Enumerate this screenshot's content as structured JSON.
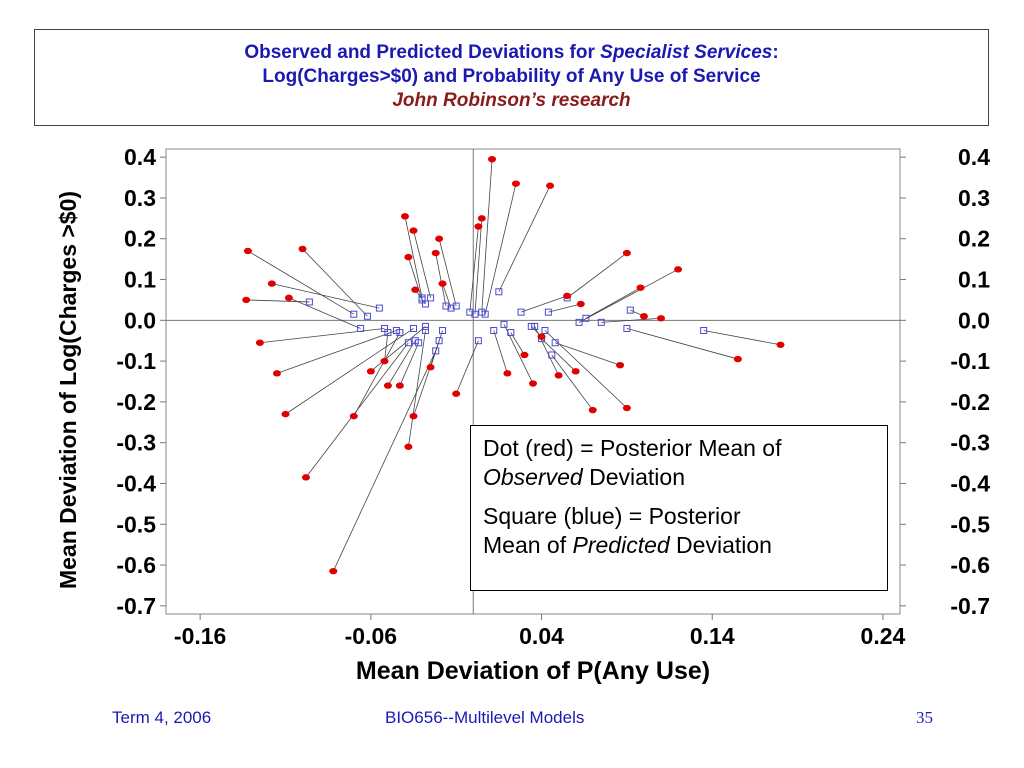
{
  "slide": {
    "title_line1_prefix": "Observed and Predicted Deviations for ",
    "title_line1_italic": "Specialist Services",
    "title_line1_suffix": ":",
    "title_line2": "Log(Charges>$0) and Probability of Any Use of Service",
    "title_line3": "John Robinson’s research",
    "footer_left": "Term 4, 2006",
    "footer_center": "BIO656--Multilevel Models",
    "page_number": "35",
    "colors": {
      "title": "#1a1ab3",
      "subtitle": "#8b1a1a",
      "footer": "#1a1ab3"
    }
  },
  "legend": {
    "line1_prefix": "Dot (red) = Posterior Mean of",
    "line1_italic": "Observed",
    "line1_suffix": " Deviation",
    "line2_prefix": "Square (blue) = Posterior",
    "line2_mid": "Mean of ",
    "line2_italic": "Predicted",
    "line2_suffix": " Deviation"
  },
  "chart_data": {
    "type": "scatter",
    "xlabel": "Mean Deviation of P(Any Use)",
    "ylabel": "Mean Deviation of Log(Charges >$0)",
    "xlim": [
      -0.18,
      0.25
    ],
    "ylim": [
      -0.72,
      0.42
    ],
    "x_ticks": [
      -0.16,
      -0.06,
      0.04,
      0.14,
      0.24
    ],
    "x_tick_labels": [
      "-0.16",
      "-0.06",
      "0.04",
      "0.14",
      "0.24"
    ],
    "y_ticks": [
      0.4,
      0.3,
      0.2,
      0.1,
      0.0,
      -0.1,
      -0.2,
      -0.3,
      -0.4,
      -0.5,
      -0.6,
      -0.7
    ],
    "y_tick_labels": [
      "0.4",
      "0.3",
      "0.2",
      "0.1",
      "0.0",
      "-0.1",
      "-0.2",
      "-0.3",
      "-0.4",
      "-0.5",
      "-0.6",
      "-0.7"
    ],
    "right_axis_labels": true,
    "reference_lines": {
      "x": 0.0,
      "y": 0.0
    },
    "marker_colors": {
      "observed": "#e00000",
      "predicted": "#4a4ad0"
    },
    "pairs": [
      {
        "obs": [
          0.011,
          0.395
        ],
        "pred": [
          0.005,
          0.02
        ]
      },
      {
        "obs": [
          0.025,
          0.335
        ],
        "pred": [
          0.007,
          0.015
        ]
      },
      {
        "obs": [
          0.045,
          0.33
        ],
        "pred": [
          0.015,
          0.07
        ]
      },
      {
        "obs": [
          0.005,
          0.25
        ],
        "pred": [
          0.001,
          0.015
        ]
      },
      {
        "obs": [
          0.003,
          0.23
        ],
        "pred": [
          -0.002,
          0.02
        ]
      },
      {
        "obs": [
          -0.04,
          0.255
        ],
        "pred": [
          -0.03,
          0.055
        ]
      },
      {
        "obs": [
          -0.035,
          0.22
        ],
        "pred": [
          -0.025,
          0.055
        ]
      },
      {
        "obs": [
          -0.02,
          0.2
        ],
        "pred": [
          -0.01,
          0.035
        ]
      },
      {
        "obs": [
          -0.038,
          0.155
        ],
        "pred": [
          -0.03,
          0.05
        ]
      },
      {
        "obs": [
          -0.022,
          0.165
        ],
        "pred": [
          -0.016,
          0.035
        ]
      },
      {
        "obs": [
          -0.034,
          0.075
        ],
        "pred": [
          -0.028,
          0.04
        ]
      },
      {
        "obs": [
          -0.018,
          0.09
        ],
        "pred": [
          -0.013,
          0.03
        ]
      },
      {
        "obs": [
          -0.132,
          0.17
        ],
        "pred": [
          -0.07,
          0.015
        ]
      },
      {
        "obs": [
          -0.1,
          0.175
        ],
        "pred": [
          -0.062,
          0.01
        ]
      },
      {
        "obs": [
          -0.118,
          0.09
        ],
        "pred": [
          -0.055,
          0.03
        ]
      },
      {
        "obs": [
          -0.108,
          0.055
        ],
        "pred": [
          -0.066,
          -0.02
        ]
      },
      {
        "obs": [
          -0.133,
          0.05
        ],
        "pred": [
          -0.096,
          0.045
        ]
      },
      {
        "obs": [
          -0.125,
          -0.055
        ],
        "pred": [
          -0.052,
          -0.02
        ]
      },
      {
        "obs": [
          -0.115,
          -0.13
        ],
        "pred": [
          -0.045,
          -0.025
        ]
      },
      {
        "obs": [
          -0.11,
          -0.23
        ],
        "pred": [
          -0.035,
          -0.02
        ]
      },
      {
        "obs": [
          -0.07,
          -0.235
        ],
        "pred": [
          -0.043,
          -0.03
        ]
      },
      {
        "obs": [
          -0.06,
          -0.125
        ],
        "pred": [
          -0.028,
          -0.015
        ]
      },
      {
        "obs": [
          -0.052,
          -0.1
        ],
        "pred": [
          -0.05,
          -0.03
        ]
      },
      {
        "obs": [
          -0.05,
          -0.16
        ],
        "pred": [
          -0.034,
          -0.05
        ]
      },
      {
        "obs": [
          -0.043,
          -0.16
        ],
        "pred": [
          -0.032,
          -0.055
        ]
      },
      {
        "obs": [
          -0.035,
          -0.235
        ],
        "pred": [
          -0.02,
          -0.05
        ]
      },
      {
        "obs": [
          -0.038,
          -0.31
        ],
        "pred": [
          -0.028,
          -0.025
        ]
      },
      {
        "obs": [
          -0.098,
          -0.385
        ],
        "pred": [
          -0.038,
          -0.055
        ]
      },
      {
        "obs": [
          -0.082,
          -0.615
        ],
        "pred": [
          -0.022,
          -0.075
        ]
      },
      {
        "obs": [
          -0.025,
          -0.115
        ],
        "pred": [
          -0.018,
          -0.025
        ]
      },
      {
        "obs": [
          -0.01,
          -0.18
        ],
        "pred": [
          0.003,
          -0.05
        ]
      },
      {
        "obs": [
          0.02,
          -0.13
        ],
        "pred": [
          0.012,
          -0.025
        ]
      },
      {
        "obs": [
          0.03,
          -0.085
        ],
        "pred": [
          0.022,
          -0.03
        ]
      },
      {
        "obs": [
          0.035,
          -0.155
        ],
        "pred": [
          0.018,
          -0.01
        ]
      },
      {
        "obs": [
          0.05,
          -0.135
        ],
        "pred": [
          0.036,
          -0.015
        ]
      },
      {
        "obs": [
          0.06,
          -0.125
        ],
        "pred": [
          0.04,
          -0.045
        ]
      },
      {
        "obs": [
          0.07,
          -0.22
        ],
        "pred": [
          0.046,
          -0.085
        ]
      },
      {
        "obs": [
          0.09,
          -0.215
        ],
        "pred": [
          0.042,
          -0.025
        ]
      },
      {
        "obs": [
          0.086,
          -0.11
        ],
        "pred": [
          0.048,
          -0.055
        ]
      },
      {
        "obs": [
          0.04,
          -0.04
        ],
        "pred": [
          0.034,
          -0.015
        ]
      },
      {
        "obs": [
          0.055,
          0.06
        ],
        "pred": [
          0.028,
          0.02
        ]
      },
      {
        "obs": [
          0.063,
          0.04
        ],
        "pred": [
          0.044,
          0.02
        ]
      },
      {
        "obs": [
          0.09,
          0.165
        ],
        "pred": [
          0.055,
          0.055
        ]
      },
      {
        "obs": [
          0.12,
          0.125
        ],
        "pred": [
          0.062,
          -0.005
        ]
      },
      {
        "obs": [
          0.098,
          0.08
        ],
        "pred": [
          0.066,
          0.005
        ]
      },
      {
        "obs": [
          0.1,
          0.01
        ],
        "pred": [
          0.092,
          0.025
        ]
      },
      {
        "obs": [
          0.11,
          0.005
        ],
        "pred": [
          0.075,
          -0.005
        ]
      },
      {
        "obs": [
          0.155,
          -0.095
        ],
        "pred": [
          0.09,
          -0.02
        ]
      },
      {
        "obs": [
          0.18,
          -0.06
        ],
        "pred": [
          0.135,
          -0.025
        ]
      }
    ]
  }
}
